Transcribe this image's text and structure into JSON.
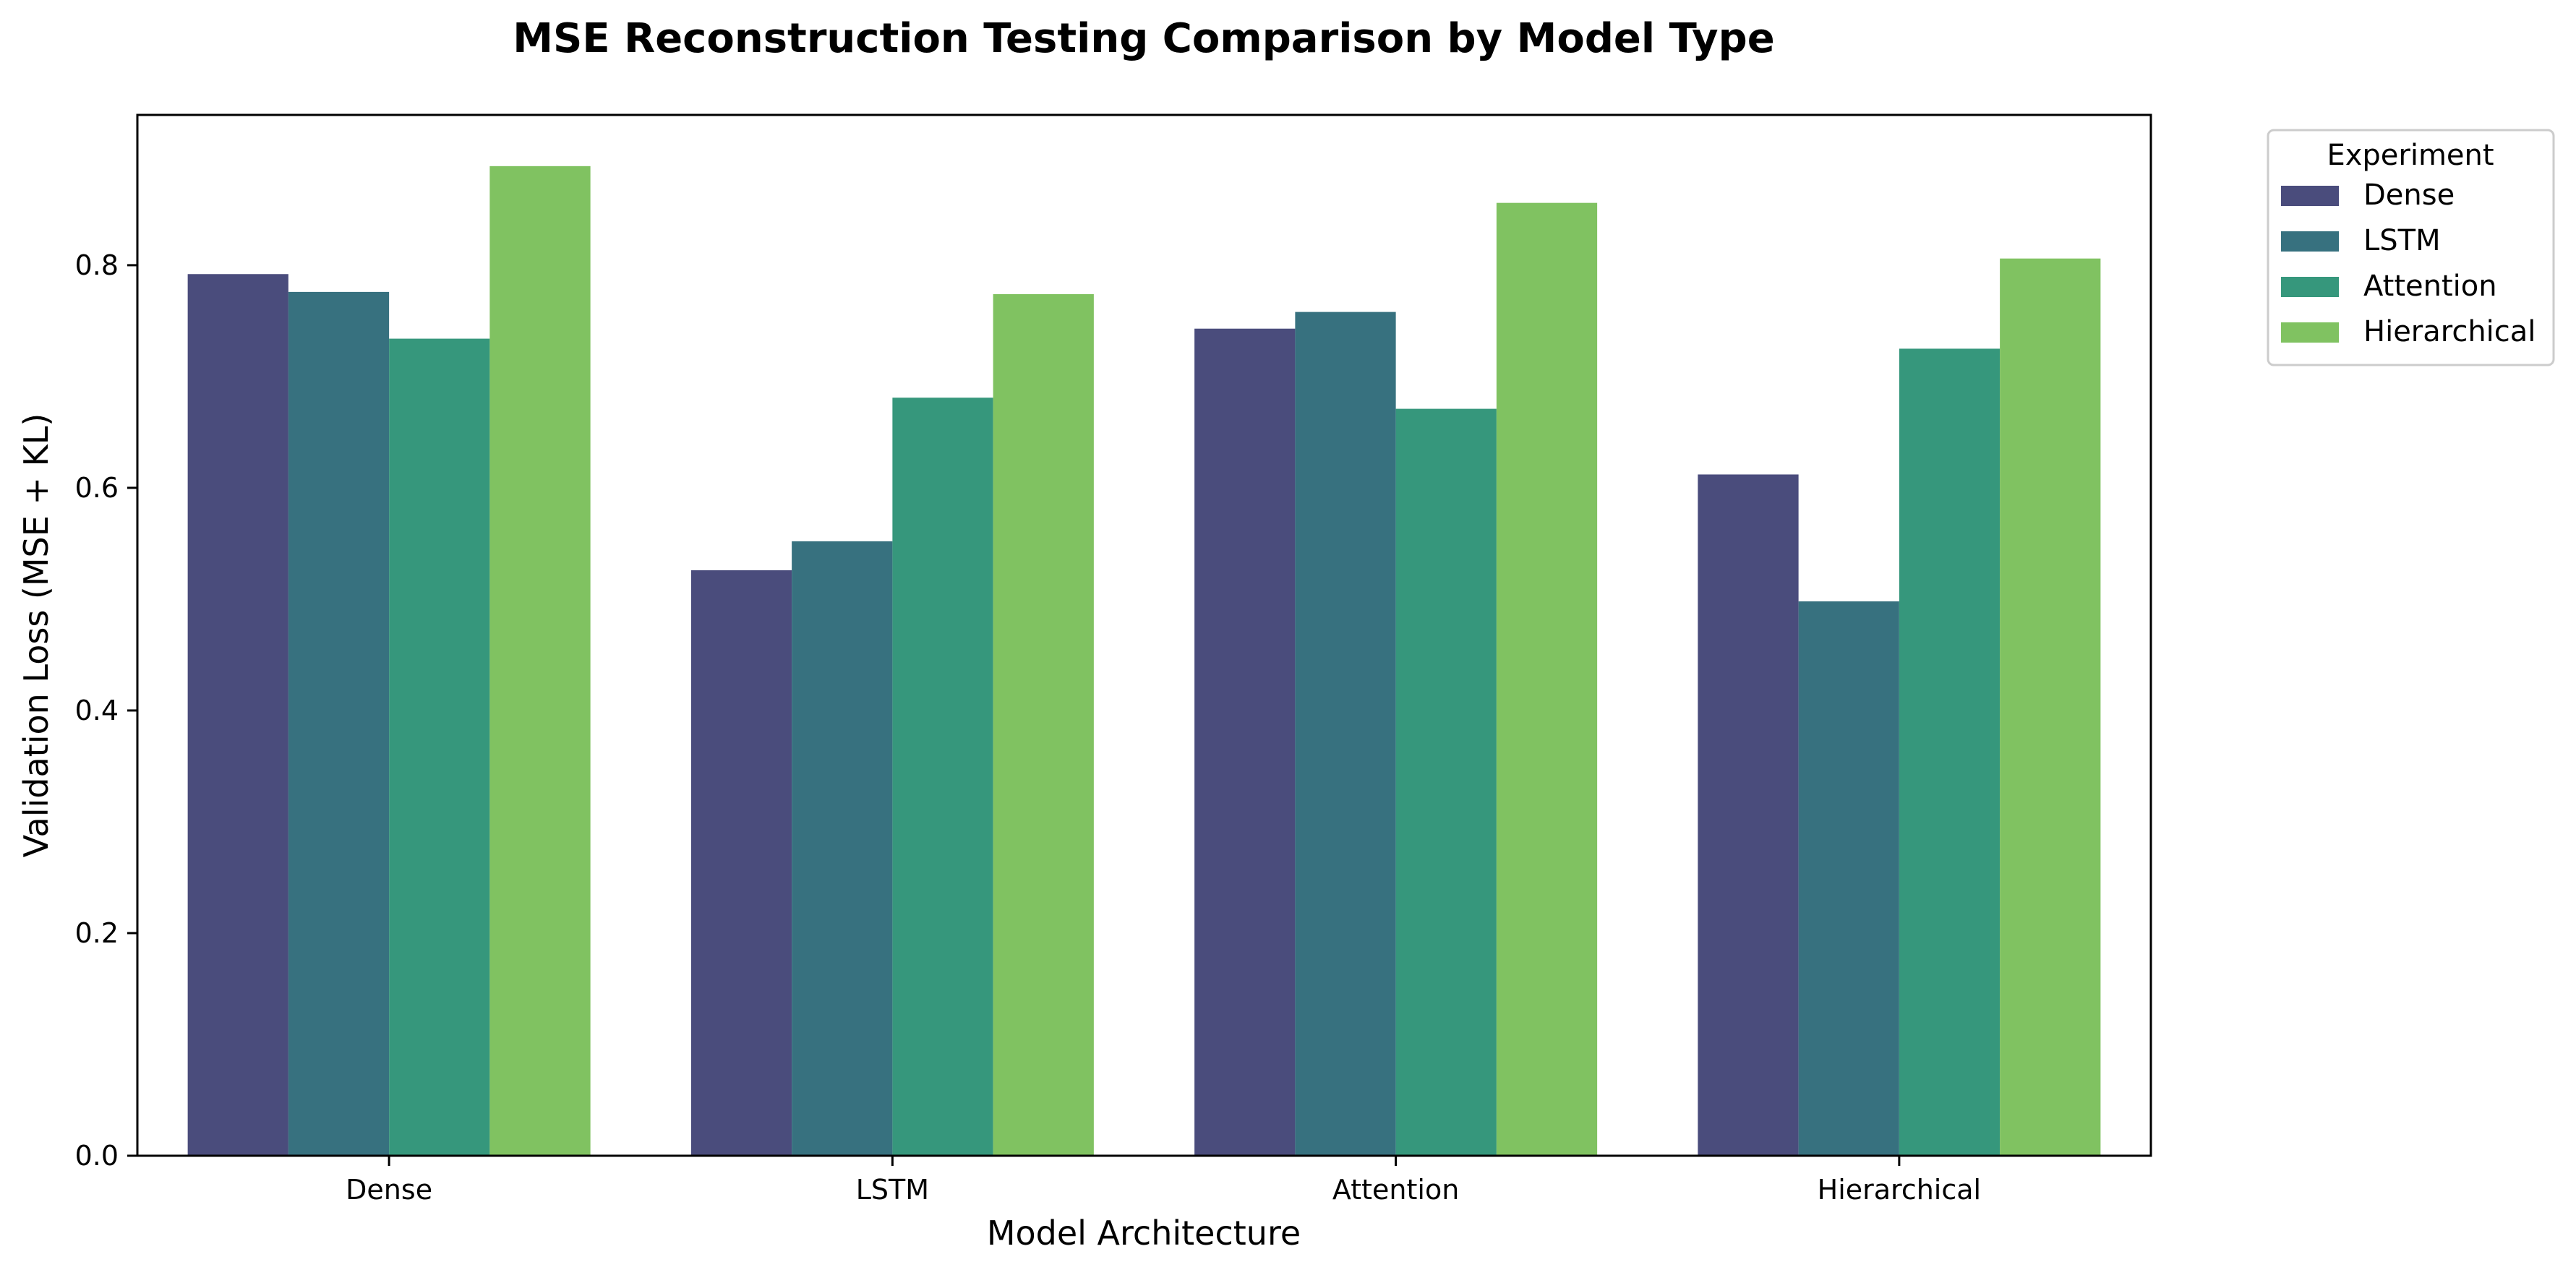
{
  "chart_data": {
    "type": "bar",
    "title": "MSE Reconstruction Testing Comparison by Model Type",
    "xlabel": "Model Architecture",
    "ylabel": "Validation Loss (MSE + KL)",
    "categories": [
      "Dense",
      "LSTM",
      "Attention",
      "Hierarchical"
    ],
    "ylim": [
      0,
      0.935
    ],
    "yticks": [
      0.0,
      0.2,
      0.4,
      0.6,
      0.8
    ],
    "ytick_labels": [
      "0.0",
      "0.2",
      "0.4",
      "0.6",
      "0.8"
    ],
    "grid": false,
    "legend": {
      "title": "Experiment",
      "placement": "outside-right"
    },
    "series": [
      {
        "name": "Dense",
        "color": "#4a4c7c",
        "values": [
          0.792,
          0.526,
          0.743,
          0.612
        ]
      },
      {
        "name": "LSTM",
        "color": "#37717f",
        "values": [
          0.776,
          0.552,
          0.758,
          0.498
        ]
      },
      {
        "name": "Attention",
        "color": "#36977c",
        "values": [
          0.734,
          0.681,
          0.671,
          0.725
        ]
      },
      {
        "name": "Hierarchical",
        "color": "#80c261",
        "values": [
          0.889,
          0.774,
          0.856,
          0.806
        ]
      }
    ]
  }
}
